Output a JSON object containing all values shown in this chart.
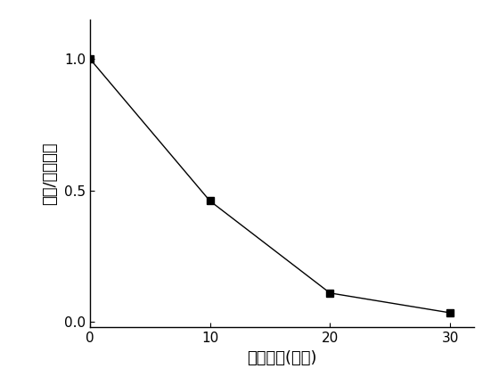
{
  "x": [
    0,
    10,
    20,
    30
  ],
  "y": [
    1.0,
    0.46,
    0.11,
    0.035
  ],
  "xlabel": "反应时间(分钟)",
  "ylabel": "浓度/初始浓度",
  "xlim": [
    0,
    32
  ],
  "ylim": [
    -0.02,
    1.15
  ],
  "xticks": [
    0,
    10,
    20,
    30
  ],
  "yticks": [
    0.0,
    0.5,
    1.0
  ],
  "line_color": "#000000",
  "marker": "s",
  "marker_size": 6,
  "marker_color": "#000000",
  "line_width": 1.0,
  "background_color": "#ffffff",
  "xlabel_fontsize": 13,
  "ylabel_fontsize": 13,
  "tick_fontsize": 11
}
